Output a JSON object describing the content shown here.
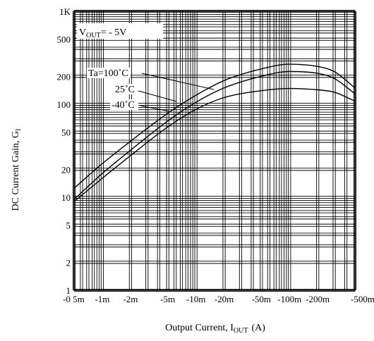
{
  "chart_data": {
    "type": "line",
    "xscale": "log",
    "yscale": "log",
    "xlabel_main": "Output Current, I",
    "xlabel_sub": "OUT",
    "xlabel_unit": "(A)",
    "ylabel_main": "DC Current Gain, G",
    "ylabel_sub": "I",
    "x_ticks": [
      {
        "v": 0.0005,
        "label": "-0 5m"
      },
      {
        "v": 0.001,
        "label": "-1m"
      },
      {
        "v": 0.002,
        "label": "-2m"
      },
      {
        "v": 0.005,
        "label": "-5m"
      },
      {
        "v": 0.01,
        "label": "-10m"
      },
      {
        "v": 0.02,
        "label": "-20m"
      },
      {
        "v": 0.05,
        "label": "-50m"
      },
      {
        "v": 0.1,
        "label": "-100m"
      },
      {
        "v": 0.2,
        "label": "-200m"
      },
      {
        "v": 0.5,
        "label": "-500m"
      }
    ],
    "y_ticks": [
      {
        "v": 1,
        "label": "1"
      },
      {
        "v": 2,
        "label": "2"
      },
      {
        "v": 5,
        "label": "5"
      },
      {
        "v": 10,
        "label": "10"
      },
      {
        "v": 20,
        "label": "20"
      },
      {
        "v": 50,
        "label": "50"
      },
      {
        "v": 100,
        "label": "100"
      },
      {
        "v": 200,
        "label": "200"
      },
      {
        "v": 500,
        "label": "500"
      },
      {
        "v": 1000,
        "label": "1K"
      }
    ],
    "xlim": [
      0.0005,
      0.5
    ],
    "ylim": [
      1,
      1000
    ],
    "grid": true,
    "condition": {
      "main": "V",
      "sub": "OUT",
      "rest": "= - 5V"
    },
    "series": [
      {
        "name": "Ta=100˚C",
        "x": [
          0.0005,
          0.001,
          0.002,
          0.005,
          0.01,
          0.02,
          0.05,
          0.1,
          0.2,
          0.3,
          0.5
        ],
        "y": [
          12.5,
          23,
          40,
          80,
          125,
          180,
          240,
          270,
          255,
          225,
          150
        ]
      },
      {
        "name": "25˚C",
        "x": [
          0.0005,
          0.001,
          0.002,
          0.005,
          0.01,
          0.02,
          0.05,
          0.1,
          0.2,
          0.3,
          0.5
        ],
        "y": [
          9.5,
          18,
          32,
          66,
          105,
          150,
          200,
          225,
          215,
          190,
          130
        ]
      },
      {
        "name": "-40˚C",
        "x": [
          0.0005,
          0.001,
          0.002,
          0.005,
          0.01,
          0.02,
          0.05,
          0.1,
          0.2,
          0.3,
          0.5
        ],
        "y": [
          9,
          16,
          28,
          57,
          88,
          118,
          140,
          148,
          143,
          135,
          108
        ]
      }
    ]
  }
}
